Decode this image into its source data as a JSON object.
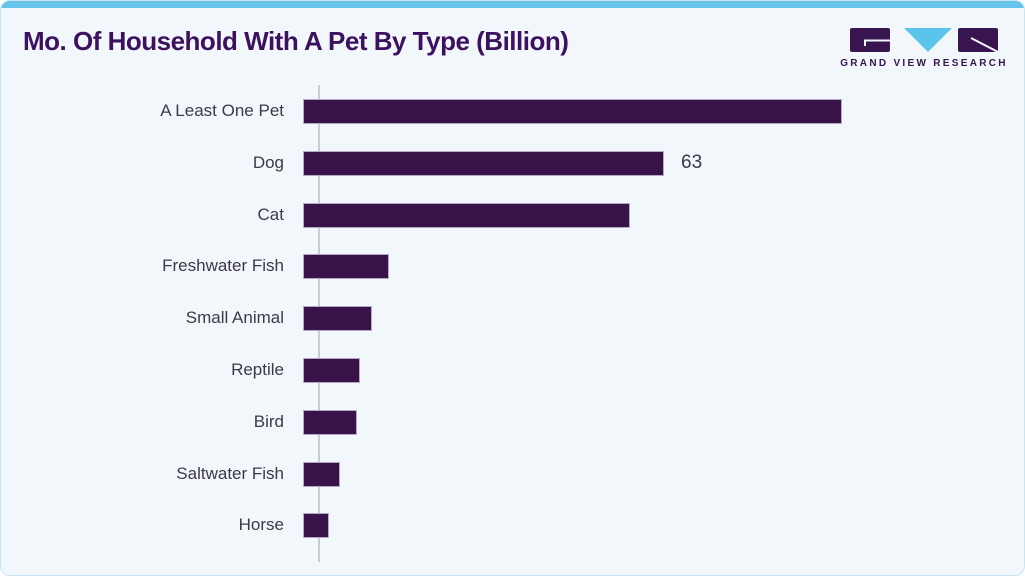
{
  "page": {
    "title": "Mo. Of Household With A Pet By Type (Billion)"
  },
  "logo": {
    "text": "GRAND VIEW RESEARCH",
    "glyphs": [
      "g-block",
      "v-triangle",
      "r-block"
    ],
    "colors": {
      "block_purple": "#38154f",
      "triangle_blue": "#5bc4eb"
    }
  },
  "colors": {
    "card_background": "#f2f7fb",
    "top_accent_blue": "#66c4ea",
    "card_border": "#c9e4f2",
    "title_purple": "#3c1160",
    "bar_purple": "#371349",
    "bar_outline": "#b5a9c4",
    "axis_line": "#cbccd5",
    "label_gray": "#3e3947"
  },
  "chart_data": {
    "type": "bar",
    "orientation": "horizontal",
    "title": "Mo. Of Household With A Pet By Type (Billion)",
    "categories": [
      "A Least One Pet",
      "Dog",
      "Cat",
      "Freshwater Fish",
      "Small Animal",
      "Reptile",
      "Bird",
      "Saltwater Fish",
      "Horse"
    ],
    "values": [
      94,
      63,
      57,
      15,
      12,
      10,
      9.5,
      6.5,
      4.5
    ],
    "value_labels": [
      "",
      "63",
      "",
      "",
      "",
      "",
      "",
      "",
      ""
    ],
    "xlabel": "",
    "ylabel": "",
    "xlim": [
      0,
      120
    ],
    "grid": false,
    "legend": false,
    "data_labels_shown": [
      "Dog: 63"
    ]
  }
}
